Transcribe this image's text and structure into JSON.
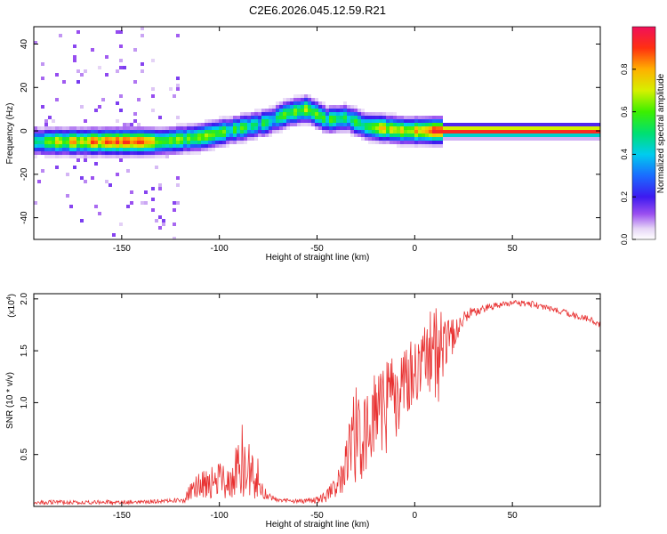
{
  "title": "C2E6.2026.045.12.59.R21",
  "chart_data": [
    {
      "type": "heatmap",
      "title": "C2E6.2026.045.12.59.R21",
      "xlabel": "Height of straight line (km)",
      "ylabel": "Frequency (Hz)",
      "xlim": [
        -195,
        95
      ],
      "ylim": [
        -50,
        48
      ],
      "x_ticks": [
        -150,
        -100,
        -50,
        0,
        50
      ],
      "y_ticks": [
        -40,
        -20,
        0,
        20,
        40
      ],
      "colorbar": {
        "label": "Normalized spectral amplitude",
        "range": [
          0.0,
          1.0
        ],
        "ticks": [
          0.0,
          0.2,
          0.4,
          0.6,
          0.8
        ],
        "tick_labels": [
          "0.0",
          "0.2",
          "0.4",
          "0.6",
          "0.8"
        ]
      },
      "ridge": {
        "description_points_x": [
          -195,
          -170,
          -150,
          -130,
          -110,
          -95,
          -85,
          -75,
          -65,
          -55,
          -45,
          -35,
          -25,
          -15,
          -5,
          5,
          15,
          95
        ],
        "frequency_hz": [
          -5,
          -5,
          -5,
          -5,
          -3,
          0,
          2,
          4,
          8,
          10,
          5,
          6,
          2,
          1,
          0,
          0,
          0,
          0
        ],
        "peak_amplitude": [
          0.55,
          0.75,
          0.9,
          0.7,
          0.6,
          0.55,
          0.5,
          0.45,
          0.6,
          0.6,
          0.55,
          0.5,
          0.55,
          0.7,
          0.75,
          0.8,
          0.95,
          0.95
        ]
      }
    },
    {
      "type": "line",
      "xlabel": "Height of straight line (km)",
      "ylabel": "SNR (10 * v/v)",
      "y_multiplier": "(x10",
      "y_multiplier_exp": "4",
      "y_multiplier_close": ")",
      "xlim": [
        -195,
        95
      ],
      "ylim": [
        0,
        2.05
      ],
      "x_ticks": [
        -150,
        -100,
        -50,
        0,
        50
      ],
      "y_ticks": [
        0.5,
        1.0,
        1.5,
        2.0
      ],
      "y_tick_labels": [
        "0.5",
        "1.0",
        "1.5",
        "2.0"
      ],
      "series_color": "#e83030",
      "envelope": {
        "x": [
          -195,
          -170,
          -150,
          -130,
          -118,
          -115,
          -110,
          -100,
          -95,
          -90,
          -88,
          -85,
          -80,
          -78,
          -75,
          -70,
          -60,
          -50,
          -45,
          -40,
          -38,
          -35,
          -30,
          -25,
          -20,
          -15,
          -10,
          -5,
          0,
          5,
          10,
          12,
          15,
          20,
          25,
          30,
          40,
          50,
          60,
          70,
          80,
          90,
          95
        ],
        "mean": [
          0.04,
          0.04,
          0.04,
          0.05,
          0.06,
          0.15,
          0.22,
          0.25,
          0.28,
          0.35,
          0.45,
          0.35,
          0.28,
          0.15,
          0.1,
          0.06,
          0.05,
          0.06,
          0.1,
          0.2,
          0.3,
          0.45,
          0.65,
          0.8,
          0.85,
          0.95,
          1.05,
          1.15,
          1.3,
          1.4,
          1.5,
          1.5,
          1.55,
          1.65,
          1.8,
          1.88,
          1.93,
          1.96,
          1.95,
          1.9,
          1.85,
          1.8,
          1.75
        ],
        "spread": [
          0.02,
          0.02,
          0.02,
          0.02,
          0.03,
          0.08,
          0.14,
          0.18,
          0.2,
          0.3,
          0.45,
          0.3,
          0.2,
          0.08,
          0.04,
          0.02,
          0.02,
          0.03,
          0.06,
          0.15,
          0.25,
          0.4,
          0.5,
          0.5,
          0.45,
          0.45,
          0.4,
          0.35,
          0.35,
          0.35,
          0.5,
          0.55,
          0.3,
          0.15,
          0.08,
          0.05,
          0.03,
          0.03,
          0.03,
          0.03,
          0.03,
          0.03,
          0.03
        ]
      }
    }
  ]
}
